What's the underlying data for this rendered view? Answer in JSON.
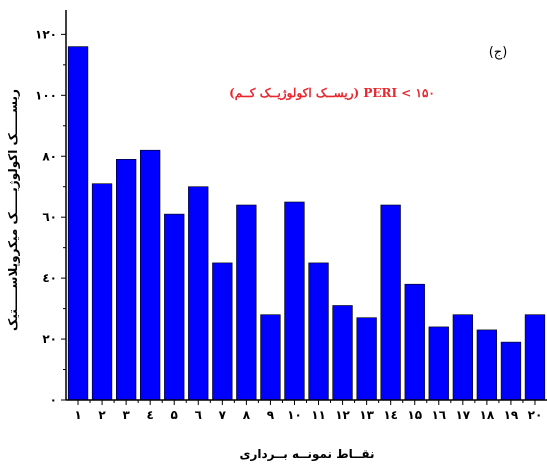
{
  "chart_data": {
    "type": "bar",
    "title": "",
    "panel_label": "(ج)",
    "annotation": "PERI < ۱۵۰ (ریســک اکولوژیــک کــم)",
    "annotation_color": "#e8282e",
    "bar_color": "#0000ff",
    "bar_edge_color": "#000000",
    "xlabel": "نقــاط نمونــه بــرداری",
    "ylabel": "ریســـــک اکولوژیـــــک میکروپلاســـــتیک",
    "categories": [
      "۱",
      "۲",
      "۳",
      "٤",
      "۵",
      "٦",
      "۷",
      "۸",
      "۹",
      "۱۰",
      "۱۱",
      "۱۲",
      "۱۳",
      "۱٤",
      "۱۵",
      "۱٦",
      "۱۷",
      "۱۸",
      "۱۹",
      "۲۰"
    ],
    "values": [
      116,
      71,
      79,
      82,
      61,
      70,
      45,
      64,
      28,
      65,
      45,
      31,
      27,
      64,
      38,
      24,
      28,
      23,
      19,
      28
    ],
    "ylim": [
      0,
      128
    ],
    "yticks": [
      0,
      20,
      40,
      60,
      80,
      100,
      120
    ],
    "ytick_labels": [
      "۰",
      "۲۰",
      "٤۰",
      "٦۰",
      "۸۰",
      "۱۰۰",
      "۱۲۰"
    ],
    "grid": false
  }
}
